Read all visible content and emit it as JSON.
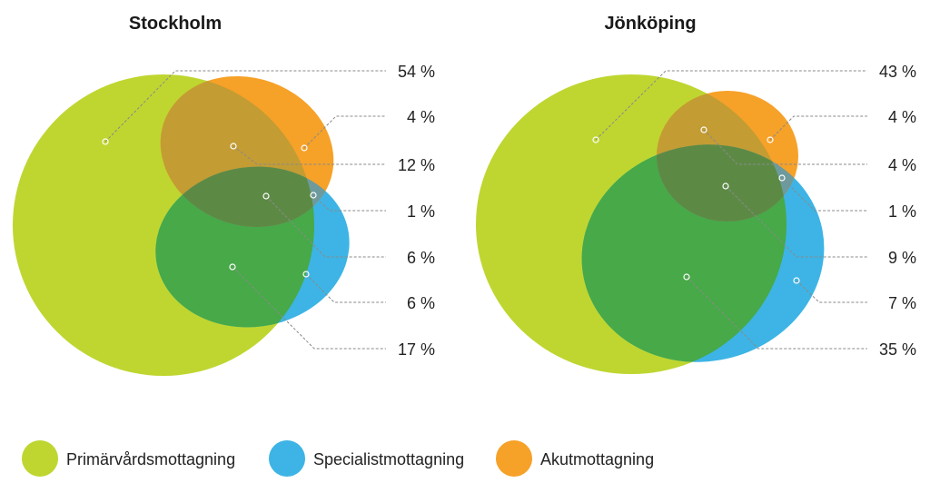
{
  "chart_data": [
    {
      "type": "venn",
      "title": "Stockholm",
      "sets": [
        "Primärvårdsmottagning",
        "Specialistmottagning",
        "Akutmottagning"
      ],
      "regions": [
        {
          "sets": [
            "Primärvårdsmottagning"
          ],
          "value": 54,
          "label": "54 %"
        },
        {
          "sets": [
            "Akutmottagning"
          ],
          "value": 4,
          "label": "4 %"
        },
        {
          "sets": [
            "Primärvårdsmottagning",
            "Akutmottagning"
          ],
          "value": 12,
          "label": "12 %"
        },
        {
          "sets": [
            "Specialistmottagning",
            "Akutmottagning"
          ],
          "value": 1,
          "label": "1 %"
        },
        {
          "sets": [
            "Primärvårdsmottagning",
            "Specialistmottagning",
            "Akutmottagning"
          ],
          "value": 6,
          "label": "6 %"
        },
        {
          "sets": [
            "Specialistmottagning"
          ],
          "value": 6,
          "label": "6 %"
        },
        {
          "sets": [
            "Primärvårdsmottagning",
            "Specialistmottagning"
          ],
          "value": 17,
          "label": "17 %"
        }
      ]
    },
    {
      "type": "venn",
      "title": "Jönköping",
      "sets": [
        "Primärvårdsmottagning",
        "Specialistmottagning",
        "Akutmottagning"
      ],
      "regions": [
        {
          "sets": [
            "Primärvårdsmottagning"
          ],
          "value": 43,
          "label": "43 %"
        },
        {
          "sets": [
            "Akutmottagning"
          ],
          "value": 4,
          "label": "4 %"
        },
        {
          "sets": [
            "Primärvårdsmottagning",
            "Akutmottagning"
          ],
          "value": 4,
          "label": "4 %"
        },
        {
          "sets": [
            "Specialistmottagning",
            "Akutmottagning"
          ],
          "value": 1,
          "label": "1 %"
        },
        {
          "sets": [
            "Primärvårdsmottagning",
            "Specialistmottagning",
            "Akutmottagning"
          ],
          "value": 9,
          "label": "9 %"
        },
        {
          "sets": [
            "Specialistmottagning"
          ],
          "value": 7,
          "label": "7 %"
        },
        {
          "sets": [
            "Primärvårdsmottagning",
            "Specialistmottagning"
          ],
          "value": 35,
          "label": "35 %"
        }
      ]
    }
  ],
  "legend": [
    {
      "label": "Primärvårdsmottagning",
      "color": "#bfd630"
    },
    {
      "label": "Specialistmottagning",
      "color": "#3db4e5"
    },
    {
      "label": "Akutmottagning",
      "color": "#f6a128"
    }
  ],
  "colors": {
    "primary": "#bfd630",
    "specialist": "#3db4e5",
    "acute": "#f6a128",
    "primary_specialist": "#47a948",
    "primary_acute": "#c39c33",
    "specialist_acute": "#6d9b9d",
    "all_three": "#5c8a45"
  }
}
